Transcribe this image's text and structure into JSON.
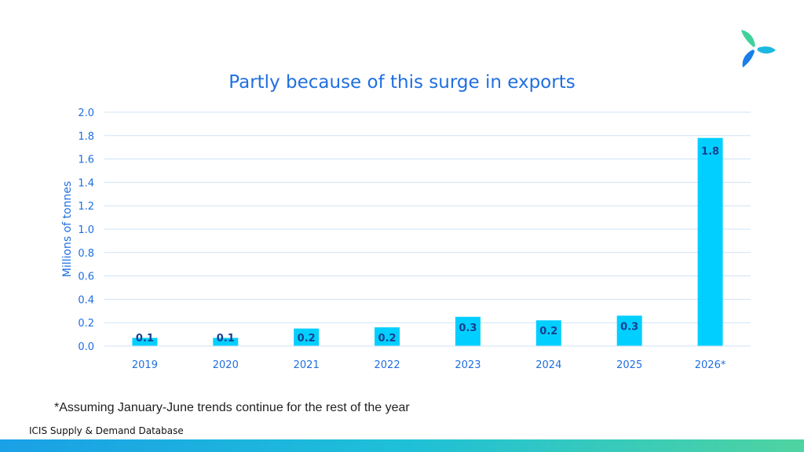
{
  "slide": {
    "title": "Partly because of this surge in exports",
    "footnote": "*Assuming January-June trends continue for the rest of the year",
    "source": "ICIS Supply & Demand Database",
    "logo_icon": "icis-logo-icon"
  },
  "colors": {
    "bar": "#00cfff",
    "accent_text": "#1f6fe0",
    "value_label": "#1b3f8f",
    "gridline": "#cfe3f5"
  },
  "chart_data": {
    "type": "bar",
    "title": "Partly because of this surge in exports",
    "xlabel": "",
    "ylabel": "Millions of tonnes",
    "categories": [
      "2019",
      "2020",
      "2021",
      "2022",
      "2023",
      "2024",
      "2025",
      "2026*"
    ],
    "values": [
      0.07,
      0.07,
      0.15,
      0.16,
      0.25,
      0.22,
      0.26,
      1.78
    ],
    "data_labels": [
      "0.1",
      "0.1",
      "0.2",
      "0.2",
      "0.3",
      "0.2",
      "0.3",
      "1.8"
    ],
    "ylim": [
      0,
      2.0
    ],
    "yticks": [
      "0.0",
      "0.2",
      "0.4",
      "0.6",
      "0.8",
      "1.0",
      "1.2",
      "1.4",
      "1.6",
      "1.8",
      "2.0"
    ],
    "grid": true,
    "legend": "none"
  }
}
